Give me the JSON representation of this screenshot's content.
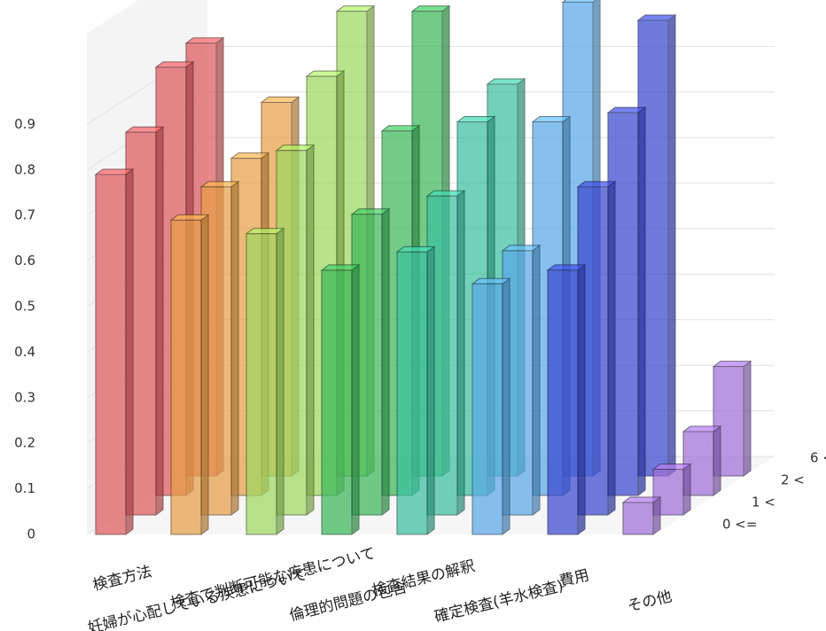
{
  "chart_data": {
    "type": "bar3d",
    "categories": [
      "検査方法",
      "妊婦が心配している疾患について",
      "検査で判断可能な疾患について",
      "倫理的問題の包含",
      "検査結果の解釈",
      "確定検査(羊水検査)",
      "費用",
      "その他"
    ],
    "colors": [
      "#e05a5e",
      "#e8a048",
      "#9ed860",
      "#3cb85a",
      "#3cc0a0",
      "#5aa8e8",
      "#3a48d0",
      "#a070d8"
    ],
    "series": [
      {
        "name": "0 <=",
        "values": [
          0.79,
          0.69,
          0.66,
          0.58,
          0.62,
          0.55,
          0.58,
          0.07
        ]
      },
      {
        "name": "1 <",
        "values": [
          0.84,
          0.72,
          0.8,
          0.66,
          0.7,
          0.58,
          0.72,
          0.1
        ]
      },
      {
        "name": "2 <",
        "values": [
          0.94,
          0.74,
          0.92,
          0.8,
          0.82,
          0.82,
          0.84,
          0.14
        ]
      },
      {
        "name": "6 <",
        "values": [
          0.95,
          0.82,
          1.02,
          1.02,
          0.86,
          1.04,
          1.0,
          0.24
        ]
      }
    ],
    "ylim": [
      0,
      1.1
    ],
    "yticks": [
      0,
      0.1,
      0.2,
      0.3,
      0.4,
      0.5,
      0.6,
      0.7,
      0.8,
      0.9
    ],
    "grid": true
  }
}
